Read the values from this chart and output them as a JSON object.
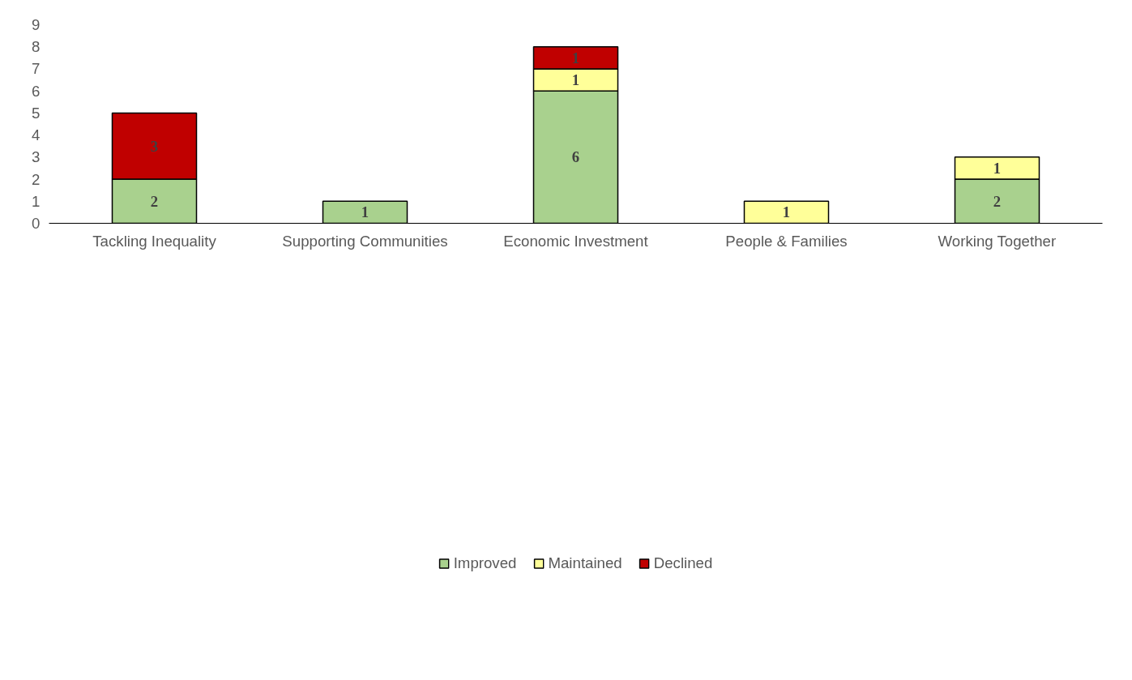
{
  "chart_data": {
    "type": "bar",
    "stacked": true,
    "categories": [
      "Tackling Inequality",
      "Supporting Communities",
      "Economic Investment",
      "People & Families",
      "Working Together"
    ],
    "series": [
      {
        "name": "Improved",
        "color": "#a9d18e",
        "values": [
          2,
          1,
          6,
          null,
          2
        ]
      },
      {
        "name": "Maintained",
        "color": "#ffff99",
        "values": [
          null,
          null,
          1,
          1,
          1
        ]
      },
      {
        "name": "Declined",
        "color": "#c00000",
        "values": [
          3,
          null,
          1,
          null,
          null
        ]
      }
    ],
    "ylim": [
      0,
      9
    ],
    "yticks": [
      0,
      1,
      2,
      3,
      4,
      5,
      6,
      7,
      8,
      9
    ],
    "grid": false,
    "legend": "bottom",
    "data_labels": true
  }
}
